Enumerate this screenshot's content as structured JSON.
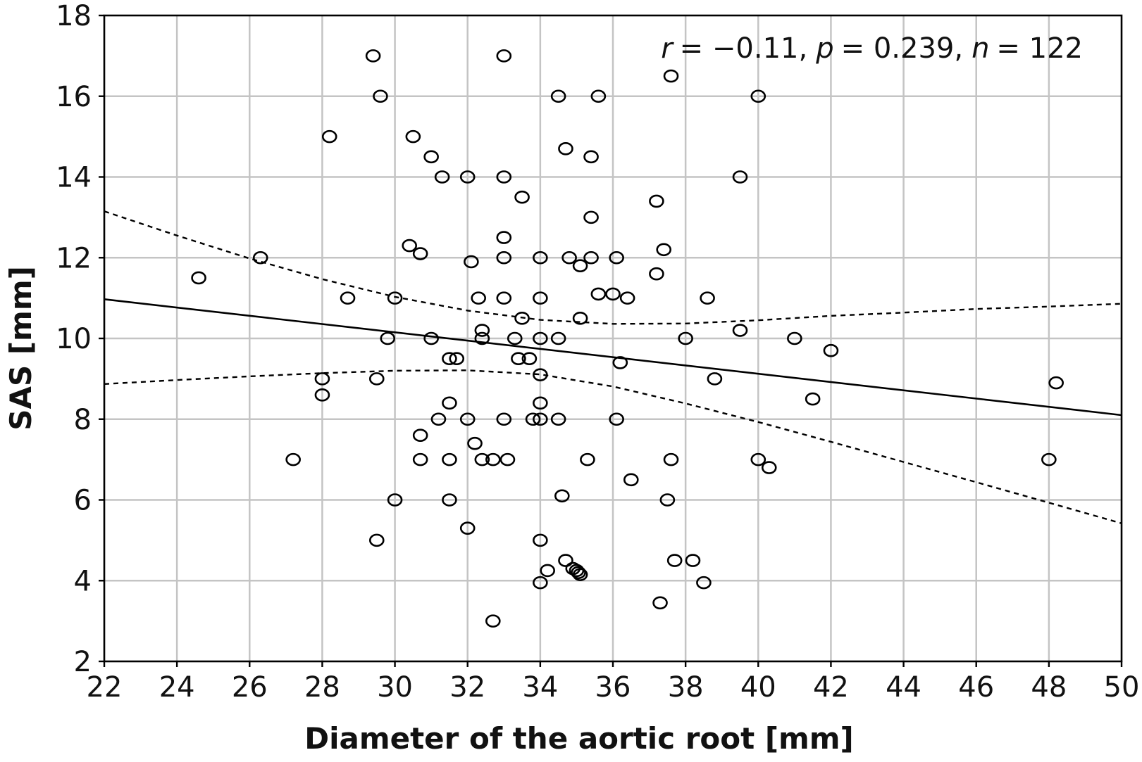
{
  "chart_data": {
    "type": "scatter",
    "title": "",
    "xlabel": "Diameter of the aortic root [mm]",
    "ylabel": "SAS [mm]",
    "xlim": [
      22,
      50
    ],
    "ylim": [
      2,
      18
    ],
    "xticks": [
      "22",
      "24",
      "26",
      "28",
      "30",
      "32",
      "34",
      "36",
      "38",
      "40",
      "42",
      "44",
      "46",
      "48",
      "50"
    ],
    "yticks": [
      "2",
      "4",
      "6",
      "8",
      "10",
      "12",
      "14",
      "16",
      "18"
    ],
    "grid": true,
    "annotation": {
      "r_label": "r",
      "r_value": "= −0.11,",
      "p_label": "p",
      "p_value": "= 0.239,",
      "n_label": "n",
      "n_value": "= 122"
    },
    "points": [
      [
        29.4,
        17.0
      ],
      [
        33.0,
        17.0
      ],
      [
        37.6,
        16.5
      ],
      [
        29.6,
        16.0
      ],
      [
        34.5,
        16.0
      ],
      [
        35.6,
        16.0
      ],
      [
        40.0,
        16.0
      ],
      [
        28.2,
        15.0
      ],
      [
        30.5,
        15.0
      ],
      [
        34.7,
        14.7
      ],
      [
        31.0,
        14.5
      ],
      [
        35.4,
        14.5
      ],
      [
        31.3,
        14.0
      ],
      [
        32.0,
        14.0
      ],
      [
        33.0,
        14.0
      ],
      [
        39.5,
        14.0
      ],
      [
        33.5,
        13.5
      ],
      [
        37.2,
        13.4
      ],
      [
        35.4,
        13.0
      ],
      [
        33.0,
        12.5
      ],
      [
        30.4,
        12.3
      ],
      [
        37.4,
        12.2
      ],
      [
        30.7,
        12.1
      ],
      [
        26.3,
        12.0
      ],
      [
        33.0,
        12.0
      ],
      [
        34.0,
        12.0
      ],
      [
        34.8,
        12.0
      ],
      [
        35.4,
        12.0
      ],
      [
        36.1,
        12.0
      ],
      [
        32.1,
        11.9
      ],
      [
        35.1,
        11.8
      ],
      [
        37.2,
        11.6
      ],
      [
        24.6,
        11.5
      ],
      [
        35.6,
        11.1
      ],
      [
        36.0,
        11.1
      ],
      [
        28.7,
        11.0
      ],
      [
        30.0,
        11.0
      ],
      [
        32.3,
        11.0
      ],
      [
        33.0,
        11.0
      ],
      [
        34.0,
        11.0
      ],
      [
        36.4,
        11.0
      ],
      [
        38.6,
        11.0
      ],
      [
        33.5,
        10.5
      ],
      [
        35.1,
        10.5
      ],
      [
        32.4,
        10.2
      ],
      [
        39.5,
        10.2
      ],
      [
        29.8,
        10.0
      ],
      [
        31.0,
        10.0
      ],
      [
        32.4,
        10.0
      ],
      [
        33.3,
        10.0
      ],
      [
        34.0,
        10.0
      ],
      [
        34.5,
        10.0
      ],
      [
        38.0,
        10.0
      ],
      [
        41.0,
        10.0
      ],
      [
        42.0,
        9.7
      ],
      [
        31.5,
        9.5
      ],
      [
        31.7,
        9.5
      ],
      [
        33.4,
        9.5
      ],
      [
        33.7,
        9.5
      ],
      [
        36.2,
        9.4
      ],
      [
        34.0,
        9.1
      ],
      [
        28.0,
        9.0
      ],
      [
        29.5,
        9.0
      ],
      [
        38.8,
        9.0
      ],
      [
        48.2,
        8.9
      ],
      [
        28.0,
        8.6
      ],
      [
        41.5,
        8.5
      ],
      [
        31.5,
        8.4
      ],
      [
        34.0,
        8.4
      ],
      [
        31.2,
        8.0
      ],
      [
        32.0,
        8.0
      ],
      [
        33.0,
        8.0
      ],
      [
        33.8,
        8.0
      ],
      [
        34.0,
        8.0
      ],
      [
        34.5,
        8.0
      ],
      [
        36.1,
        8.0
      ],
      [
        30.7,
        7.6
      ],
      [
        32.2,
        7.4
      ],
      [
        27.2,
        7.0
      ],
      [
        30.7,
        7.0
      ],
      [
        31.5,
        7.0
      ],
      [
        32.4,
        7.0
      ],
      [
        32.7,
        7.0
      ],
      [
        33.1,
        7.0
      ],
      [
        35.3,
        7.0
      ],
      [
        37.6,
        7.0
      ],
      [
        40.0,
        7.0
      ],
      [
        48.0,
        7.0
      ],
      [
        40.3,
        6.8
      ],
      [
        36.5,
        6.5
      ],
      [
        34.6,
        6.1
      ],
      [
        30.0,
        6.0
      ],
      [
        31.5,
        6.0
      ],
      [
        37.5,
        6.0
      ],
      [
        32.0,
        5.3
      ],
      [
        29.5,
        5.0
      ],
      [
        34.0,
        5.0
      ],
      [
        34.7,
        4.5
      ],
      [
        37.7,
        4.5
      ],
      [
        38.2,
        4.5
      ],
      [
        34.9,
        4.3
      ],
      [
        35.0,
        4.25
      ],
      [
        35.05,
        4.2
      ],
      [
        35.1,
        4.15
      ],
      [
        34.2,
        4.25
      ],
      [
        34.0,
        3.95
      ],
      [
        38.5,
        3.95
      ],
      [
        37.3,
        3.45
      ],
      [
        32.7,
        3.0
      ]
    ],
    "fit_line": [
      [
        22,
        10.97
      ],
      [
        50,
        8.1
      ]
    ],
    "ci_upper": [
      [
        22,
        13.15
      ],
      [
        24,
        12.55
      ],
      [
        26,
        11.98
      ],
      [
        28,
        11.47
      ],
      [
        30,
        11.03
      ],
      [
        32,
        10.69
      ],
      [
        34,
        10.46
      ],
      [
        36,
        10.36
      ],
      [
        38,
        10.37
      ],
      [
        40,
        10.45
      ],
      [
        42,
        10.56
      ],
      [
        44,
        10.64
      ],
      [
        46,
        10.73
      ],
      [
        48,
        10.79
      ],
      [
        50,
        10.86
      ]
    ],
    "ci_lower": [
      [
        22,
        8.87
      ],
      [
        24,
        8.97
      ],
      [
        26,
        9.06
      ],
      [
        28,
        9.14
      ],
      [
        30,
        9.2
      ],
      [
        32,
        9.21
      ],
      [
        34,
        9.11
      ],
      [
        36,
        8.81
      ],
      [
        38,
        8.39
      ],
      [
        40,
        7.93
      ],
      [
        42,
        7.44
      ],
      [
        44,
        6.94
      ],
      [
        46,
        6.44
      ],
      [
        48,
        5.93
      ],
      [
        50,
        5.42
      ]
    ]
  }
}
